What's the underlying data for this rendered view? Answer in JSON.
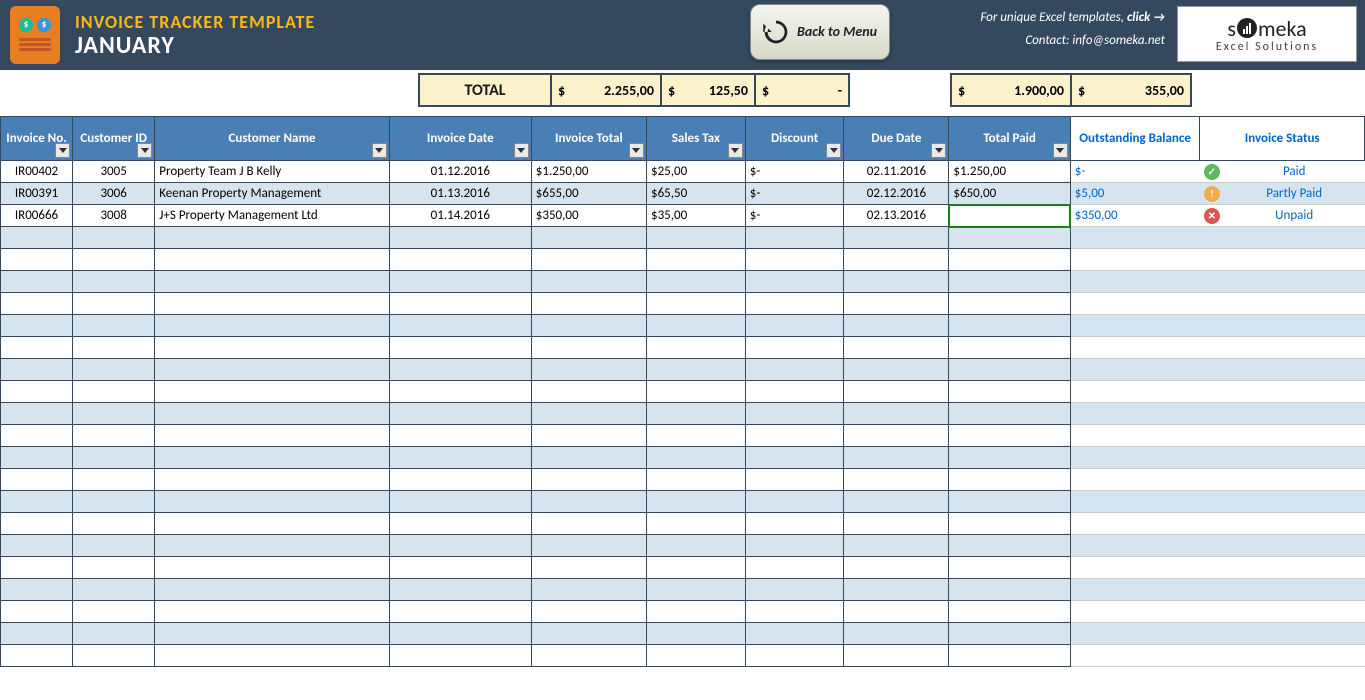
{
  "header": {
    "title": "INVOICE TRACKER TEMPLATE",
    "month": "JANUARY",
    "back_button": "Back to Menu",
    "right_line1_prefix": "For unique Excel templates, ",
    "right_line1_bold": "click →",
    "right_line2_prefix": "Contact: ",
    "right_line2_email": "info@someka.net",
    "brand_name": "someka",
    "brand_sub": "Excel Solutions"
  },
  "totals": {
    "label": "TOTAL",
    "currency": "$",
    "invoice_total": "2.255,00",
    "sales_tax": "125,50",
    "discount": "-",
    "total_paid": "1.900,00",
    "outstanding": "355,00"
  },
  "columns": {
    "invno": "Invoice No.",
    "custid": "Customer ID",
    "name": "Customer Name",
    "date": "Invoice Date",
    "total": "Invoice Total",
    "tax": "Sales Tax",
    "disc": "Discount",
    "due": "Due Date",
    "paid": "Total Paid",
    "out": "Outstanding Balance",
    "status": "Invoice Status"
  },
  "rows": [
    {
      "invno": "IR00402",
      "custid": "3005",
      "name": "Property Team J B Kelly",
      "date": "01.12.2016",
      "total": "1.250,00",
      "tax": "25,00",
      "disc": "-",
      "due": "02.11.2016",
      "paid": "1.250,00",
      "out": "-",
      "status": "Paid",
      "status_class": "si-paid",
      "status_char": "✓"
    },
    {
      "invno": "IR00391",
      "custid": "3006",
      "name": "Keenan Property Management",
      "date": "01.13.2016",
      "total": "655,00",
      "tax": "65,50",
      "disc": "-",
      "due": "02.12.2016",
      "paid": "650,00",
      "out": "5,00",
      "status": "Partly Paid",
      "status_class": "si-partly",
      "status_char": "!"
    },
    {
      "invno": "IR00666",
      "custid": "3008",
      "name": "J+S Property Management Ltd",
      "date": "01.14.2016",
      "total": "350,00",
      "tax": "35,00",
      "disc": "-",
      "due": "02.13.2016",
      "paid": "",
      "out": "350,00",
      "status": "Unpaid",
      "status_class": "si-unpaid",
      "status_char": "✕"
    }
  ],
  "colors": {
    "header_bg": "#34495e",
    "accent": "#fdb813",
    "th_bg": "#4a7fb5",
    "row_alt": "#d6e4f0",
    "total_bg": "#fdf2cc",
    "link": "#0066cc"
  },
  "empty_rows": 20,
  "currency_symbol": "$"
}
